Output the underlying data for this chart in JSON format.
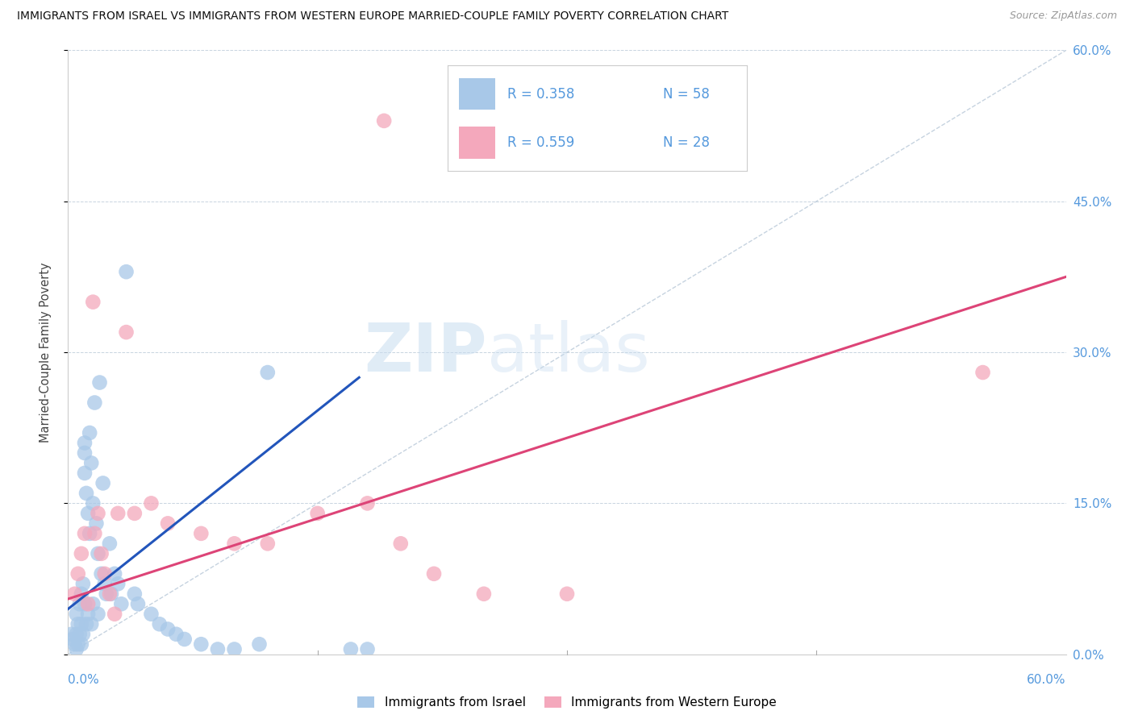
{
  "title": "IMMIGRANTS FROM ISRAEL VS IMMIGRANTS FROM WESTERN EUROPE MARRIED-COUPLE FAMILY POVERTY CORRELATION CHART",
  "source": "Source: ZipAtlas.com",
  "ylabel": "Married-Couple Family Poverty",
  "ytick_labels": [
    "0.0%",
    "15.0%",
    "30.0%",
    "45.0%",
    "60.0%"
  ],
  "ytick_values": [
    0.0,
    0.15,
    0.3,
    0.45,
    0.6
  ],
  "xlim": [
    0.0,
    0.6
  ],
  "ylim": [
    0.0,
    0.6
  ],
  "legend_bottom_label1": "Immigrants from Israel",
  "legend_bottom_label2": "Immigrants from Western Europe",
  "watermark_zip": "ZIP",
  "watermark_atlas": "atlas",
  "blue_color": "#a8c8e8",
  "pink_color": "#f4a8bc",
  "blue_line_color": "#2255bb",
  "pink_line_color": "#dd4477",
  "diag_color": "#b8c8d8",
  "legend_r1": "R = 0.358",
  "legend_n1": "N = 58",
  "legend_r2": "R = 0.559",
  "legend_n2": "N = 28",
  "scatter_blue_x": [
    0.002,
    0.003,
    0.004,
    0.005,
    0.005,
    0.005,
    0.006,
    0.006,
    0.007,
    0.007,
    0.008,
    0.008,
    0.008,
    0.009,
    0.009,
    0.01,
    0.01,
    0.01,
    0.01,
    0.011,
    0.011,
    0.012,
    0.012,
    0.013,
    0.013,
    0.014,
    0.014,
    0.015,
    0.015,
    0.016,
    0.017,
    0.018,
    0.018,
    0.019,
    0.02,
    0.021,
    0.022,
    0.023,
    0.025,
    0.026,
    0.028,
    0.03,
    0.032,
    0.035,
    0.04,
    0.042,
    0.05,
    0.055,
    0.06,
    0.065,
    0.07,
    0.08,
    0.09,
    0.1,
    0.115,
    0.12,
    0.17,
    0.18
  ],
  "scatter_blue_y": [
    0.02,
    0.015,
    0.01,
    0.04,
    0.02,
    0.005,
    0.03,
    0.01,
    0.05,
    0.02,
    0.06,
    0.03,
    0.01,
    0.07,
    0.02,
    0.18,
    0.2,
    0.21,
    0.05,
    0.16,
    0.03,
    0.14,
    0.04,
    0.22,
    0.12,
    0.19,
    0.03,
    0.15,
    0.05,
    0.25,
    0.13,
    0.1,
    0.04,
    0.27,
    0.08,
    0.17,
    0.07,
    0.06,
    0.11,
    0.06,
    0.08,
    0.07,
    0.05,
    0.38,
    0.06,
    0.05,
    0.04,
    0.03,
    0.025,
    0.02,
    0.015,
    0.01,
    0.005,
    0.005,
    0.01,
    0.28,
    0.005,
    0.005
  ],
  "scatter_pink_x": [
    0.004,
    0.006,
    0.008,
    0.01,
    0.012,
    0.015,
    0.016,
    0.018,
    0.02,
    0.022,
    0.025,
    0.028,
    0.03,
    0.035,
    0.04,
    0.05,
    0.06,
    0.08,
    0.1,
    0.12,
    0.15,
    0.18,
    0.2,
    0.22,
    0.25,
    0.3,
    0.55,
    0.19
  ],
  "scatter_pink_y": [
    0.06,
    0.08,
    0.1,
    0.12,
    0.05,
    0.35,
    0.12,
    0.14,
    0.1,
    0.08,
    0.06,
    0.04,
    0.14,
    0.32,
    0.14,
    0.15,
    0.13,
    0.12,
    0.11,
    0.11,
    0.14,
    0.15,
    0.11,
    0.08,
    0.06,
    0.06,
    0.28,
    0.53
  ],
  "blue_fit_x": [
    0.0,
    0.175
  ],
  "blue_fit_y": [
    0.045,
    0.275
  ],
  "pink_fit_x": [
    0.0,
    0.6
  ],
  "pink_fit_y": [
    0.055,
    0.375
  ]
}
